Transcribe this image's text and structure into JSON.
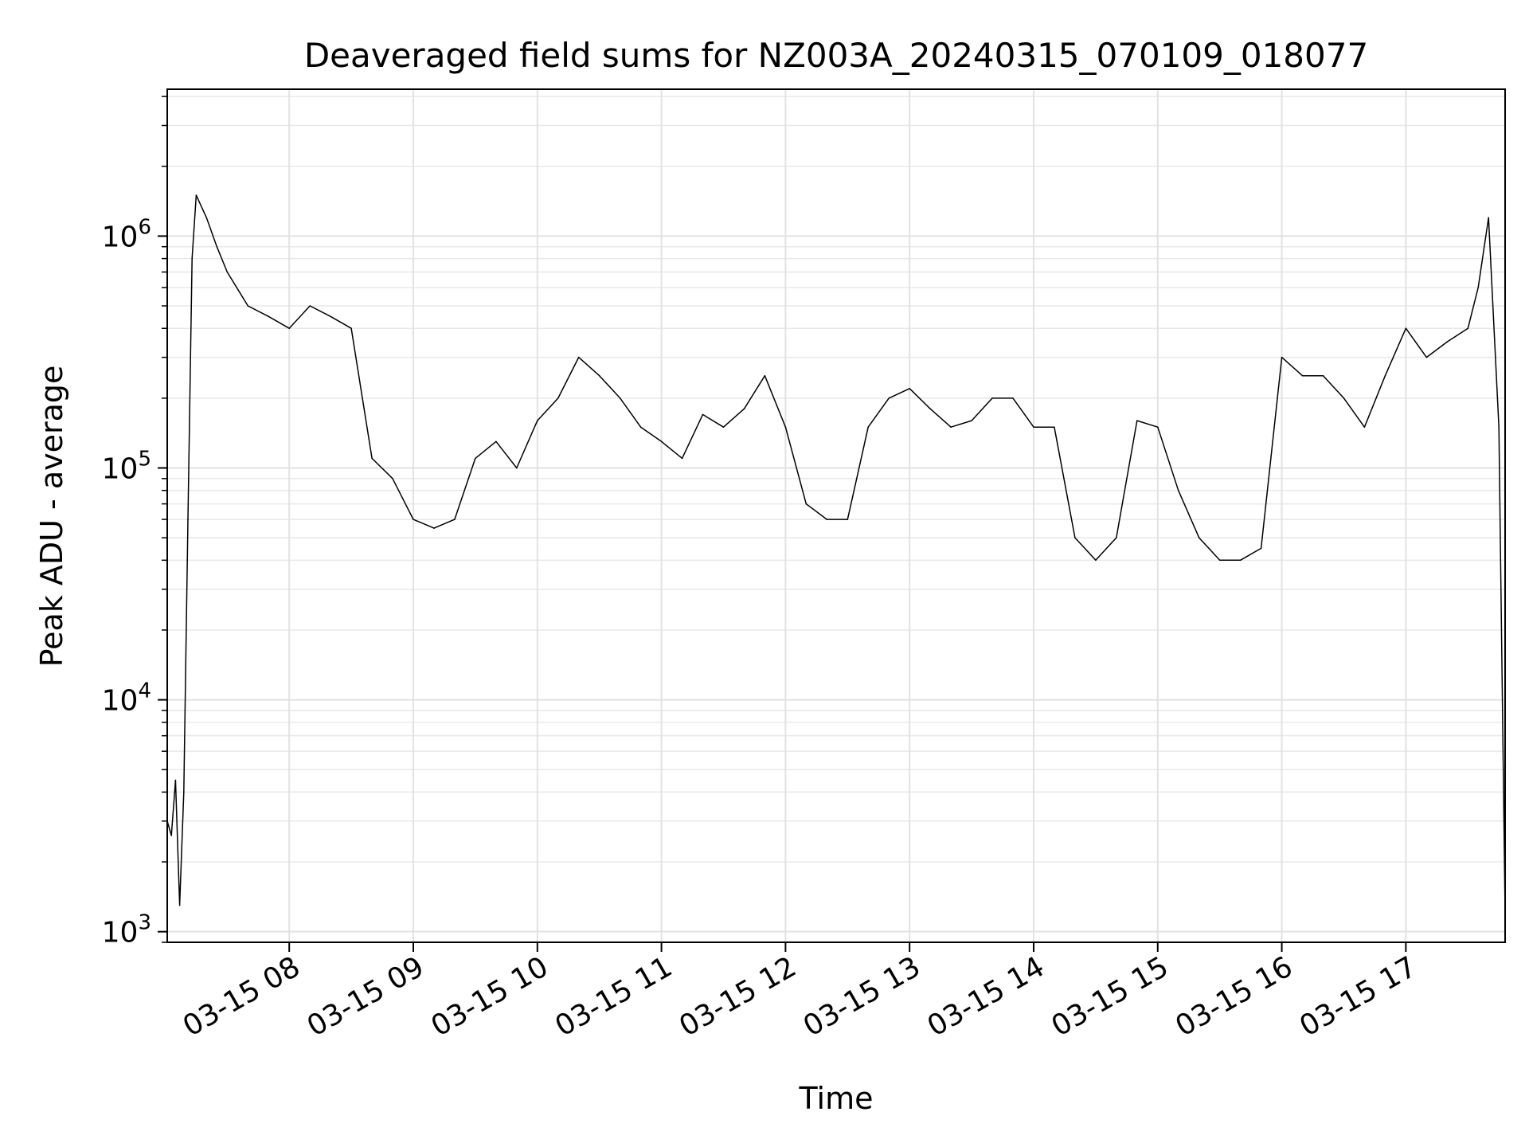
{
  "chart_data": {
    "type": "line",
    "title": "Deaveraged field sums for NZ003A_20240315_070109_018077",
    "xlabel": "Time",
    "ylabel": "Peak ADU - average",
    "yscale": "log",
    "xlim": [
      "2024-03-15 07:01",
      "2024-03-15 17:48"
    ],
    "ylim": [
      900,
      4300000
    ],
    "grid": true,
    "xticks": [
      "03-15 08",
      "03-15 09",
      "03-15 10",
      "03-15 11",
      "03-15 12",
      "03-15 13",
      "03-15 14",
      "03-15 15",
      "03-15 16",
      "03-15 17"
    ],
    "yticks": [
      {
        "base": "10",
        "exp": "3"
      },
      {
        "base": "10",
        "exp": "4"
      },
      {
        "base": "10",
        "exp": "6"
      }
    ],
    "ytick_mid": {
      "base": "10",
      "exp": "5"
    },
    "series": [
      {
        "color": "#000000",
        "x": [
          "2024-03-15 07:01",
          "2024-03-15 07:03",
          "2024-03-15 07:05",
          "2024-03-15 07:07",
          "2024-03-15 07:09",
          "2024-03-15 07:11",
          "2024-03-15 07:13",
          "2024-03-15 07:15",
          "2024-03-15 07:20",
          "2024-03-15 07:25",
          "2024-03-15 07:30",
          "2024-03-15 07:40",
          "2024-03-15 07:50",
          "2024-03-15 08:00",
          "2024-03-15 08:10",
          "2024-03-15 08:20",
          "2024-03-15 08:30",
          "2024-03-15 08:40",
          "2024-03-15 08:50",
          "2024-03-15 09:00",
          "2024-03-15 09:10",
          "2024-03-15 09:20",
          "2024-03-15 09:30",
          "2024-03-15 09:40",
          "2024-03-15 09:50",
          "2024-03-15 10:00",
          "2024-03-15 10:10",
          "2024-03-15 10:20",
          "2024-03-15 10:30",
          "2024-03-15 10:40",
          "2024-03-15 10:50",
          "2024-03-15 11:00",
          "2024-03-15 11:10",
          "2024-03-15 11:20",
          "2024-03-15 11:30",
          "2024-03-15 11:40",
          "2024-03-15 11:50",
          "2024-03-15 12:00",
          "2024-03-15 12:10",
          "2024-03-15 12:20",
          "2024-03-15 12:30",
          "2024-03-15 12:40",
          "2024-03-15 12:50",
          "2024-03-15 13:00",
          "2024-03-15 13:10",
          "2024-03-15 13:20",
          "2024-03-15 13:30",
          "2024-03-15 13:40",
          "2024-03-15 13:50",
          "2024-03-15 14:00",
          "2024-03-15 14:10",
          "2024-03-15 14:20",
          "2024-03-15 14:30",
          "2024-03-15 14:40",
          "2024-03-15 14:50",
          "2024-03-15 15:00",
          "2024-03-15 15:10",
          "2024-03-15 15:20",
          "2024-03-15 15:30",
          "2024-03-15 15:40",
          "2024-03-15 15:50",
          "2024-03-15 16:00",
          "2024-03-15 16:10",
          "2024-03-15 16:20",
          "2024-03-15 16:30",
          "2024-03-15 16:40",
          "2024-03-15 16:50",
          "2024-03-15 17:00",
          "2024-03-15 17:10",
          "2024-03-15 17:20",
          "2024-03-15 17:30",
          "2024-03-15 17:35",
          "2024-03-15 17:40",
          "2024-03-15 17:45",
          "2024-03-15 17:48"
        ],
        "y": [
          3000,
          2600,
          4500,
          1300,
          4000,
          60000,
          800000,
          1500000,
          1200000,
          900000,
          700000,
          500000,
          450000,
          400000,
          500000,
          450000,
          400000,
          110000,
          90000,
          60000,
          55000,
          60000,
          110000,
          130000,
          100000,
          160000,
          200000,
          300000,
          250000,
          200000,
          150000,
          130000,
          110000,
          170000,
          150000,
          180000,
          250000,
          150000,
          70000,
          60000,
          60000,
          150000,
          200000,
          220000,
          180000,
          150000,
          160000,
          200000,
          200000,
          150000,
          150000,
          50000,
          40000,
          50000,
          160000,
          150000,
          80000,
          50000,
          40000,
          40000,
          45000,
          300000,
          250000,
          250000,
          200000,
          150000,
          250000,
          400000,
          300000,
          350000,
          400000,
          600000,
          1200000,
          150000,
          1200
        ]
      }
    ]
  }
}
